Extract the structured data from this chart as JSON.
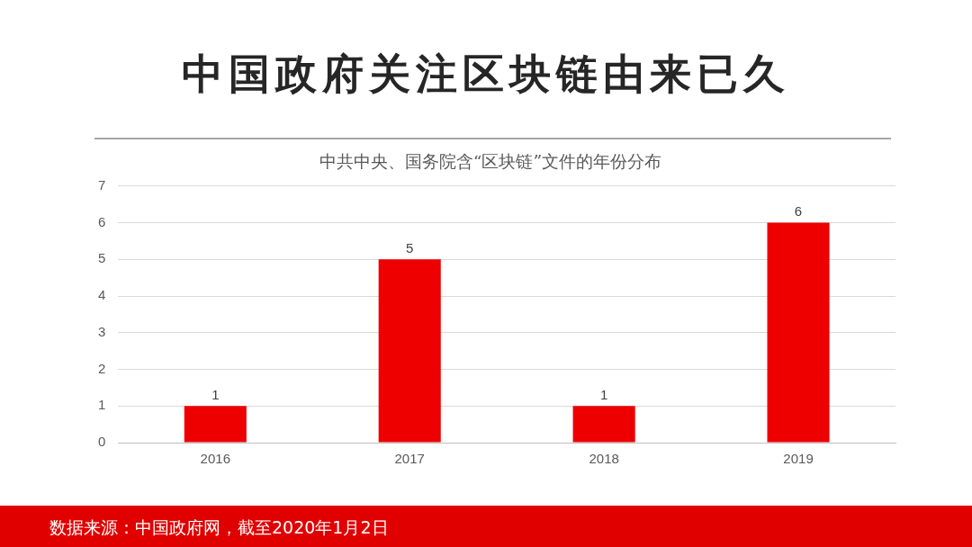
{
  "chart_data": {
    "type": "bar",
    "title": "中国政府关注区块链由来已久",
    "subtitle": "中共中央、国务院含“区块链”文件的年份分布",
    "categories": [
      "2016",
      "2017",
      "2018",
      "2019"
    ],
    "values": [
      1,
      5,
      1,
      6
    ],
    "color": "#ee0000",
    "ylim": [
      0,
      7
    ],
    "yticks": [
      0,
      1,
      2,
      3,
      4,
      5,
      6,
      7
    ],
    "grid": "y",
    "legend": false,
    "data_labels": true,
    "annotations": [
      "数据来源：中国政府网，截至2020年1月2日"
    ]
  }
}
